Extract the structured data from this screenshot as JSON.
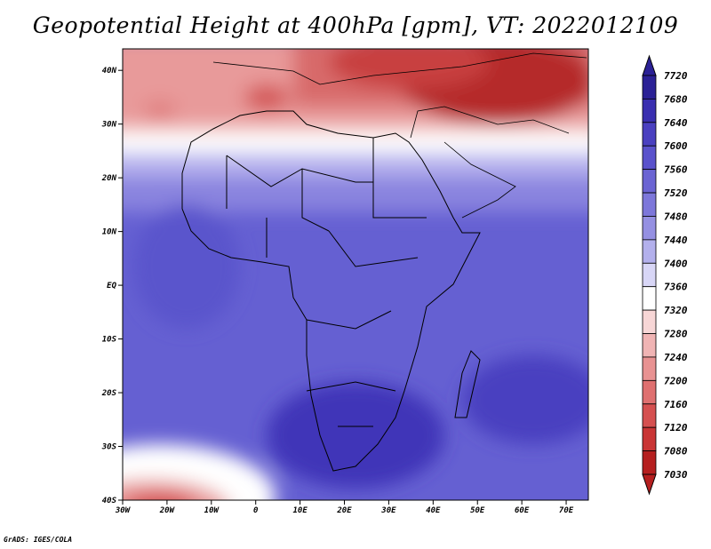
{
  "title": "Geopotential Height at 400hPa [gpm], VT: 2022012109",
  "credit": "GrADS: IGES/COLA",
  "map": {
    "lat_labels": [
      "40N",
      "30N",
      "20N",
      "10N",
      "EQ",
      "10S",
      "20S",
      "30S",
      "40S"
    ],
    "lon_labels": [
      "30W",
      "20W",
      "10W",
      "0",
      "10E",
      "20E",
      "30E",
      "40E",
      "50E",
      "60E",
      "70E"
    ],
    "lon_range": [
      -30,
      75
    ],
    "lat_range": [
      -40,
      44
    ]
  },
  "legend": {
    "max_label": "7720",
    "levels": [
      "7680",
      "7640",
      "7600",
      "7560",
      "7520",
      "7480",
      "7440",
      "7400",
      "7360",
      "7320",
      "7280",
      "7240",
      "7200",
      "7160",
      "7120",
      "7080"
    ],
    "min_label": "7030",
    "colors": [
      "#2b2196",
      "#3a2fb0",
      "#4a40c0",
      "#5a52cc",
      "#6b64d3",
      "#7d77da",
      "#9590e2",
      "#b3b0ec",
      "#d8d6f6",
      "#ffffff",
      "#f7d6d6",
      "#f0b4b4",
      "#e89292",
      "#df7070",
      "#d55050",
      "#c93535",
      "#b51f1f"
    ]
  }
}
